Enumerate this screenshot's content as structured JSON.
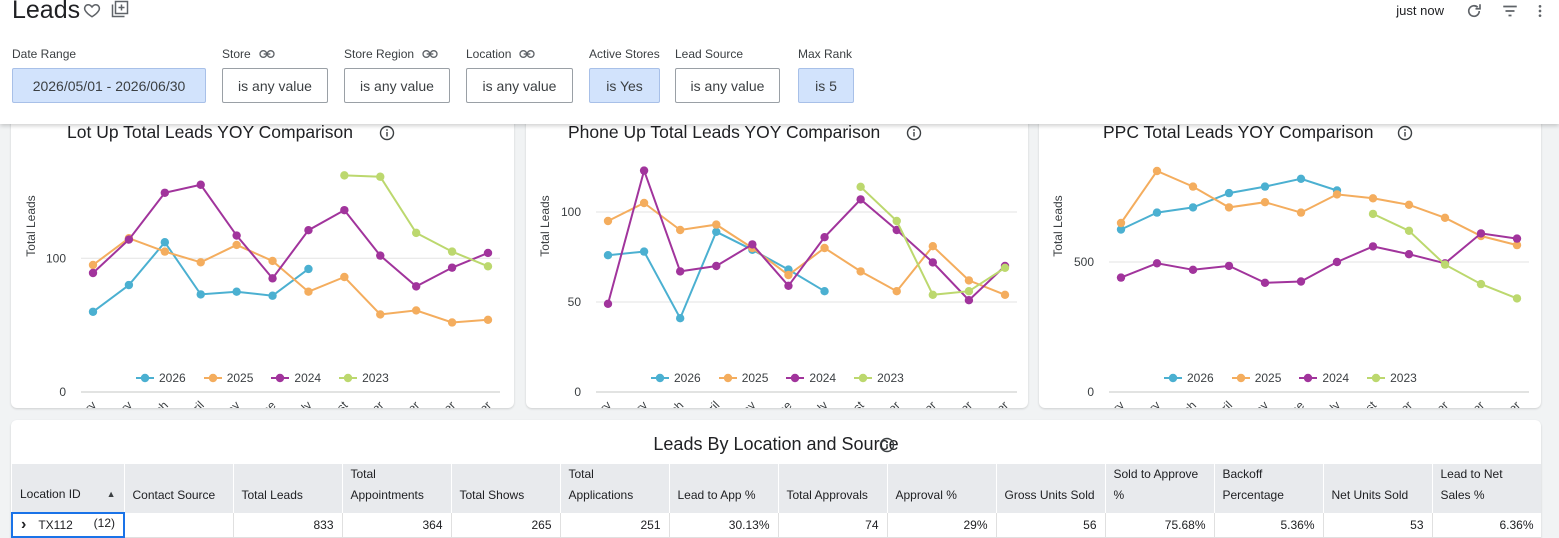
{
  "header": {
    "title": "Leads",
    "last_updated": "just now"
  },
  "filters": [
    {
      "label": "Date Range",
      "value": "2026/05/01 - 2026/06/30",
      "active": true,
      "linked": false
    },
    {
      "label": "Store",
      "value": "is any value",
      "active": false,
      "linked": true
    },
    {
      "label": "Store Region",
      "value": "is any value",
      "active": false,
      "linked": true
    },
    {
      "label": "Location",
      "value": "is any value",
      "active": false,
      "linked": true
    },
    {
      "label": "Active Stores",
      "value": "is Yes",
      "active": true,
      "linked": false
    },
    {
      "label": "Lead Source",
      "value": "is any value",
      "active": false,
      "linked": false
    },
    {
      "label": "Max Rank",
      "value": "is 5",
      "active": true,
      "linked": false
    }
  ],
  "colors": {
    "2026": "#4bb0d1",
    "2025": "#f4ad5e",
    "2024": "#a1349c",
    "2023": "#bcd86e"
  },
  "chart_data": [
    {
      "type": "line",
      "title": "Lot Up Total Leads YOY Comparison",
      "ylabel": "Total Leads",
      "xlabel": "",
      "ylim": [
        0,
        175
      ],
      "yticks": [
        0,
        100
      ],
      "categories": [
        "January",
        "February",
        "March",
        "April",
        "May",
        "June",
        "July",
        "August",
        "September",
        "October",
        "November",
        "December"
      ],
      "series": [
        {
          "name": "2026",
          "values": [
            60,
            80,
            112,
            73,
            75,
            72,
            92,
            null,
            null,
            null,
            null,
            null
          ]
        },
        {
          "name": "2025",
          "values": [
            95,
            115,
            105,
            97,
            110,
            98,
            75,
            86,
            58,
            61,
            52,
            54
          ]
        },
        {
          "name": "2024",
          "values": [
            89,
            114,
            149,
            155,
            117,
            85,
            121,
            136,
            102,
            79,
            93,
            104
          ]
        },
        {
          "name": "2023",
          "values": [
            null,
            null,
            null,
            null,
            null,
            null,
            null,
            162,
            161,
            119,
            105,
            94
          ]
        }
      ]
    },
    {
      "type": "line",
      "title": "Phone Up Total Leads YOY Comparison",
      "ylabel": "Total Leads",
      "xlabel": "",
      "ylim": [
        0,
        130
      ],
      "yticks": [
        0,
        50,
        100
      ],
      "categories": [
        "January",
        "February",
        "March",
        "April",
        "May",
        "June",
        "July",
        "August",
        "September",
        "October",
        "November",
        "December"
      ],
      "series": [
        {
          "name": "2026",
          "values": [
            76,
            78,
            41,
            89,
            79,
            68,
            56,
            null,
            null,
            null,
            null,
            null
          ]
        },
        {
          "name": "2025",
          "values": [
            95,
            105,
            90,
            93,
            80,
            65,
            80,
            67,
            56,
            81,
            62,
            54
          ]
        },
        {
          "name": "2024",
          "values": [
            49,
            123,
            67,
            70,
            82,
            59,
            86,
            107,
            90,
            72,
            51,
            70
          ]
        },
        {
          "name": "2023",
          "values": [
            null,
            null,
            null,
            null,
            null,
            null,
            null,
            114,
            95,
            54,
            56,
            69
          ]
        }
      ]
    },
    {
      "type": "line",
      "title": "PPC Total Leads YOY Comparison",
      "ylabel": "Total Leads",
      "xlabel": "",
      "ylim": [
        0,
        900
      ],
      "yticks": [
        0,
        500
      ],
      "categories": [
        "January",
        "February",
        "March",
        "April",
        "May",
        "June",
        "July",
        "August",
        "September",
        "October",
        "November",
        "December"
      ],
      "series": [
        {
          "name": "2026",
          "values": [
            625,
            690,
            710,
            765,
            790,
            820,
            775,
            null,
            null,
            null,
            null,
            null
          ]
        },
        {
          "name": "2025",
          "values": [
            650,
            850,
            790,
            710,
            730,
            690,
            760,
            745,
            720,
            670,
            600,
            565
          ]
        },
        {
          "name": "2024",
          "values": [
            440,
            495,
            470,
            485,
            420,
            425,
            500,
            560,
            530,
            495,
            610,
            590
          ]
        },
        {
          "name": "2023",
          "values": [
            null,
            null,
            null,
            null,
            null,
            null,
            null,
            685,
            620,
            490,
            415,
            360
          ]
        }
      ]
    }
  ],
  "table": {
    "title": "Leads By Location and Source",
    "sort_indicator": "▲",
    "columns": [
      "Location ID",
      "Contact Source",
      "Total Leads",
      "Total Appointments",
      "Total Shows",
      "Total Applications",
      "Lead to App %",
      "Total Approvals",
      "Approval %",
      "Gross Units Sold",
      "Sold to Approve %",
      "Backoff Percentage",
      "Net Units Sold",
      "Lead to Net Sales %"
    ],
    "rows": [
      {
        "location": "TX112",
        "count": "(12)",
        "cells": [
          "",
          "833",
          "364",
          "265",
          "251",
          "30.13%",
          "74",
          "29%",
          "56",
          "75.68%",
          "5.36%",
          "53",
          "6.36%"
        ]
      }
    ]
  }
}
